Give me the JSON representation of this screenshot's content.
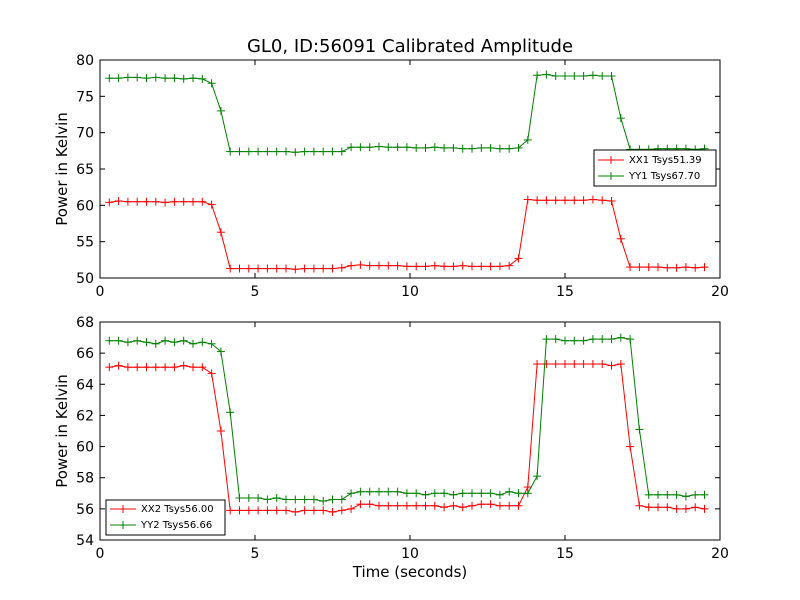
{
  "chart_data": [
    {
      "type": "line",
      "title": "GL0, ID:56091 Calibrated Amplitude",
      "xlabel": "",
      "ylabel": "Power in Kelvin",
      "xlim": [
        0,
        20
      ],
      "ylim": [
        50,
        80
      ],
      "xticks": [
        0,
        5,
        10,
        15,
        20
      ],
      "yticks": [
        50,
        55,
        60,
        65,
        70,
        75,
        80
      ],
      "grid": false,
      "legend_position": "center-right",
      "x": [
        0.3,
        0.6,
        0.9,
        1.2,
        1.5,
        1.8,
        2.1,
        2.4,
        2.7,
        3.0,
        3.3,
        3.6,
        3.9,
        4.2,
        4.5,
        4.8,
        5.1,
        5.4,
        5.7,
        6.0,
        6.3,
        6.6,
        6.9,
        7.2,
        7.5,
        7.8,
        8.1,
        8.4,
        8.7,
        9.0,
        9.3,
        9.6,
        9.9,
        10.2,
        10.5,
        10.8,
        11.1,
        11.4,
        11.7,
        12.0,
        12.3,
        12.6,
        12.9,
        13.2,
        13.5,
        13.8,
        14.1,
        14.4,
        14.7,
        15.0,
        15.3,
        15.6,
        15.9,
        16.2,
        16.5,
        16.8,
        17.1,
        17.4,
        17.7,
        18.0,
        18.3,
        18.6,
        18.9,
        19.2,
        19.5
      ],
      "series": [
        {
          "name": "XX1 Tsys51.39",
          "color": "#ff0000",
          "values": [
            60.4,
            60.6,
            60.5,
            60.5,
            60.5,
            60.5,
            60.4,
            60.5,
            60.5,
            60.5,
            60.5,
            60.1,
            56.3,
            51.3,
            51.3,
            51.3,
            51.3,
            51.3,
            51.3,
            51.3,
            51.2,
            51.3,
            51.3,
            51.3,
            51.3,
            51.4,
            51.7,
            51.8,
            51.7,
            51.7,
            51.7,
            51.7,
            51.6,
            51.6,
            51.6,
            51.7,
            51.6,
            51.6,
            51.7,
            51.6,
            51.6,
            51.6,
            51.6,
            51.7,
            52.7,
            60.8,
            60.7,
            60.7,
            60.7,
            60.7,
            60.7,
            60.7,
            60.8,
            60.7,
            60.6,
            55.4,
            51.5,
            51.5,
            51.5,
            51.5,
            51.4,
            51.4,
            51.5,
            51.4,
            51.5
          ]
        },
        {
          "name": "YY1 Tsys67.70",
          "color": "#008000",
          "values": [
            77.5,
            77.5,
            77.6,
            77.6,
            77.5,
            77.6,
            77.5,
            77.5,
            77.4,
            77.5,
            77.4,
            76.8,
            73.0,
            67.4,
            67.4,
            67.4,
            67.4,
            67.4,
            67.4,
            67.4,
            67.3,
            67.4,
            67.4,
            67.4,
            67.4,
            67.4,
            68.0,
            68.0,
            68.0,
            68.1,
            68.0,
            68.0,
            68.0,
            67.9,
            67.9,
            68.0,
            67.9,
            67.9,
            67.8,
            67.8,
            67.9,
            67.9,
            67.8,
            67.8,
            67.9,
            69.0,
            77.9,
            78.0,
            77.8,
            77.8,
            77.8,
            77.8,
            77.9,
            77.8,
            77.8,
            72.0,
            67.7,
            67.7,
            67.7,
            67.8,
            67.8,
            67.8,
            67.8,
            67.7,
            67.8
          ]
        }
      ]
    },
    {
      "type": "line",
      "title": "",
      "xlabel": "Time (seconds)",
      "ylabel": "Power in Kelvin",
      "xlim": [
        0,
        20
      ],
      "ylim": [
        54,
        68
      ],
      "xticks": [
        0,
        5,
        10,
        15,
        20
      ],
      "yticks": [
        54,
        56,
        58,
        60,
        62,
        64,
        66,
        68
      ],
      "grid": false,
      "legend_position": "lower-left",
      "x": [
        0.3,
        0.6,
        0.9,
        1.2,
        1.5,
        1.8,
        2.1,
        2.4,
        2.7,
        3.0,
        3.3,
        3.6,
        3.9,
        4.2,
        4.5,
        4.8,
        5.1,
        5.4,
        5.7,
        6.0,
        6.3,
        6.6,
        6.9,
        7.2,
        7.5,
        7.8,
        8.1,
        8.4,
        8.7,
        9.0,
        9.3,
        9.6,
        9.9,
        10.2,
        10.5,
        10.8,
        11.1,
        11.4,
        11.7,
        12.0,
        12.3,
        12.6,
        12.9,
        13.2,
        13.5,
        13.8,
        14.1,
        14.4,
        14.7,
        15.0,
        15.3,
        15.6,
        15.9,
        16.2,
        16.5,
        16.8,
        17.1,
        17.4,
        17.7,
        18.0,
        18.3,
        18.6,
        18.9,
        19.2,
        19.5
      ],
      "series": [
        {
          "name": "XX2 Tsys56.00",
          "color": "#ff0000",
          "values": [
            65.1,
            65.2,
            65.1,
            65.1,
            65.1,
            65.1,
            65.1,
            65.1,
            65.2,
            65.1,
            65.1,
            64.7,
            61.0,
            55.9,
            55.9,
            55.9,
            55.9,
            55.9,
            55.9,
            55.9,
            55.8,
            55.9,
            55.9,
            55.9,
            55.8,
            55.9,
            56.0,
            56.3,
            56.3,
            56.2,
            56.2,
            56.2,
            56.2,
            56.2,
            56.2,
            56.2,
            56.1,
            56.2,
            56.1,
            56.2,
            56.3,
            56.3,
            56.2,
            56.2,
            56.2,
            57.4,
            65.3,
            65.3,
            65.3,
            65.3,
            65.3,
            65.3,
            65.3,
            65.3,
            65.2,
            65.3,
            60.0,
            56.2,
            56.1,
            56.1,
            56.1,
            56.0,
            56.0,
            56.1,
            56.0
          ],
          "_note": "values array aligned to x"
        },
        {
          "name": "YY2 Tsys56.66",
          "color": "#008000",
          "values": [
            66.8,
            66.8,
            66.7,
            66.8,
            66.7,
            66.6,
            66.8,
            66.7,
            66.8,
            66.6,
            66.7,
            66.6,
            66.1,
            62.2,
            56.7,
            56.7,
            56.7,
            56.6,
            56.7,
            56.6,
            56.6,
            56.6,
            56.6,
            56.5,
            56.6,
            56.6,
            57.0,
            57.1,
            57.1,
            57.1,
            57.1,
            57.1,
            57.0,
            57.0,
            56.9,
            57.0,
            57.0,
            56.9,
            57.0,
            57.0,
            57.0,
            57.0,
            56.9,
            57.1,
            57.0,
            57.0,
            58.1,
            66.9,
            66.9,
            66.8,
            66.8,
            66.8,
            66.9,
            66.9,
            66.9,
            67.0,
            66.9,
            61.1,
            56.9,
            56.9,
            56.9,
            56.9,
            56.8,
            56.9,
            56.9
          ]
        }
      ]
    }
  ]
}
